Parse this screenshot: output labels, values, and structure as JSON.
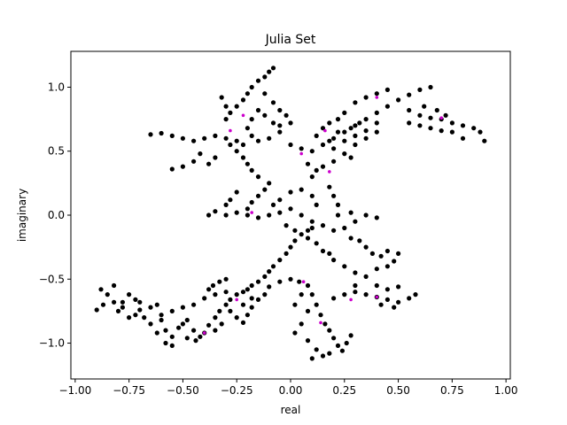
{
  "chart_data": {
    "type": "scatter",
    "title": "Julia Set",
    "xlabel": "real",
    "ylabel": "imaginary",
    "xlim": [
      -1.02,
      1.02
    ],
    "ylim": [
      -1.28,
      1.28
    ],
    "x_ticks": [
      -1.0,
      -0.75,
      -0.5,
      -0.25,
      0.0,
      0.25,
      0.5,
      0.75,
      1.0
    ],
    "x_tick_labels": [
      "−1.00",
      "−0.75",
      "−0.50",
      "−0.25",
      "0.00",
      "0.25",
      "0.50",
      "0.75",
      "1.00"
    ],
    "y_ticks": [
      -1.0,
      -0.5,
      0.0,
      0.5,
      1.0
    ],
    "y_tick_labels": [
      "−1.0",
      "−0.5",
      "0.0",
      "0.5",
      "1.0"
    ],
    "grid": false,
    "series": [
      {
        "marker_color": "#000000",
        "accent_color": "#cc00cc",
        "points": [
          [
            -0.87,
            -0.7
          ],
          [
            -0.85,
            -0.62
          ],
          [
            -0.82,
            -0.68
          ],
          [
            -0.9,
            -0.74
          ],
          [
            -0.78,
            -0.72
          ],
          [
            -0.75,
            -0.8
          ],
          [
            -0.72,
            -0.78
          ],
          [
            -0.7,
            -0.74
          ],
          [
            -0.68,
            -0.8
          ],
          [
            -0.65,
            -0.72
          ],
          [
            -0.62,
            -0.7
          ],
          [
            -0.6,
            -0.82
          ],
          [
            -0.58,
            -0.9
          ],
          [
            -0.55,
            -0.95
          ],
          [
            -0.52,
            -0.88
          ],
          [
            -0.5,
            -0.85
          ],
          [
            -0.48,
            -0.82
          ],
          [
            -0.45,
            -0.9
          ],
          [
            -0.42,
            -0.95
          ],
          [
            -0.4,
            -0.92
          ],
          [
            -0.38,
            -0.86
          ],
          [
            -0.35,
            -0.8
          ],
          [
            -0.33,
            -0.75
          ],
          [
            -0.3,
            -0.7
          ],
          [
            -0.28,
            -0.66
          ],
          [
            -0.25,
            -0.62
          ],
          [
            -0.22,
            -0.6
          ],
          [
            -0.2,
            -0.58
          ],
          [
            -0.18,
            -0.55
          ],
          [
            -0.15,
            -0.52
          ],
          [
            -0.12,
            -0.48
          ],
          [
            -0.1,
            -0.44
          ],
          [
            -0.08,
            -0.4
          ],
          [
            -0.05,
            -0.35
          ],
          [
            -0.02,
            -0.3
          ],
          [
            0.0,
            -0.25
          ],
          [
            0.02,
            -0.2
          ],
          [
            0.05,
            -0.15
          ],
          [
            0.08,
            -0.12
          ],
          [
            0.1,
            -0.1
          ],
          [
            -0.3,
            -0.5
          ],
          [
            -0.33,
            -0.52
          ],
          [
            -0.36,
            -0.55
          ],
          [
            -0.38,
            -0.58
          ],
          [
            -0.25,
            -0.8
          ],
          [
            -0.22,
            -0.84
          ],
          [
            -0.2,
            -0.78
          ],
          [
            -0.18,
            -0.72
          ],
          [
            -0.15,
            -0.66
          ],
          [
            -0.12,
            -0.62
          ],
          [
            -0.1,
            -0.56
          ],
          [
            -0.05,
            -0.52
          ],
          [
            0.0,
            -0.5
          ],
          [
            0.04,
            -0.52
          ],
          [
            0.08,
            -0.55
          ],
          [
            0.1,
            -0.62
          ],
          [
            0.12,
            -0.7
          ],
          [
            0.14,
            -0.78
          ],
          [
            0.16,
            -0.85
          ],
          [
            0.18,
            -0.9
          ],
          [
            0.2,
            -0.96
          ],
          [
            0.22,
            -1.02
          ],
          [
            0.24,
            -1.06
          ],
          [
            0.26,
            -1.0
          ],
          [
            0.28,
            -0.94
          ],
          [
            0.15,
            -1.1
          ],
          [
            0.1,
            -1.12
          ],
          [
            0.12,
            -1.05
          ],
          [
            0.18,
            -1.08
          ],
          [
            0.08,
            -0.98
          ],
          [
            0.2,
            -0.65
          ],
          [
            0.25,
            -0.62
          ],
          [
            0.3,
            -0.6
          ],
          [
            0.35,
            -0.62
          ],
          [
            0.4,
            -0.64
          ],
          [
            0.45,
            -0.66
          ],
          [
            0.5,
            -0.68
          ],
          [
            0.55,
            -0.65
          ],
          [
            0.58,
            -0.62
          ],
          [
            0.48,
            -0.72
          ],
          [
            0.42,
            -0.7
          ],
          [
            0.3,
            -0.55
          ],
          [
            0.35,
            -0.48
          ],
          [
            0.4,
            -0.42
          ],
          [
            0.45,
            -0.4
          ],
          [
            0.48,
            -0.36
          ],
          [
            0.3,
            -0.45
          ],
          [
            0.25,
            -0.4
          ],
          [
            0.2,
            -0.35
          ],
          [
            0.18,
            -0.3
          ],
          [
            -0.2,
            0.05
          ],
          [
            -0.18,
            0.1
          ],
          [
            -0.15,
            0.15
          ],
          [
            -0.12,
            0.2
          ],
          [
            -0.1,
            0.25
          ],
          [
            -0.15,
            0.3
          ],
          [
            -0.18,
            0.35
          ],
          [
            -0.2,
            0.4
          ],
          [
            -0.22,
            0.45
          ],
          [
            -0.25,
            0.5
          ],
          [
            -0.28,
            0.55
          ],
          [
            -0.3,
            0.6
          ],
          [
            -0.35,
            0.62
          ],
          [
            -0.4,
            0.6
          ],
          [
            -0.45,
            0.58
          ],
          [
            -0.5,
            0.6
          ],
          [
            -0.55,
            0.62
          ],
          [
            -0.6,
            0.64
          ],
          [
            -0.65,
            0.63
          ],
          [
            -0.42,
            0.48
          ],
          [
            -0.45,
            0.42
          ],
          [
            -0.5,
            0.38
          ],
          [
            -0.55,
            0.36
          ],
          [
            -0.35,
            0.45
          ],
          [
            -0.38,
            0.4
          ],
          [
            -0.3,
            0.75
          ],
          [
            -0.28,
            0.8
          ],
          [
            -0.25,
            0.85
          ],
          [
            -0.22,
            0.9
          ],
          [
            -0.2,
            0.95
          ],
          [
            -0.18,
            1.0
          ],
          [
            -0.15,
            1.05
          ],
          [
            -0.12,
            1.08
          ],
          [
            -0.1,
            1.12
          ],
          [
            -0.08,
            1.15
          ],
          [
            -0.12,
            0.95
          ],
          [
            -0.08,
            0.88
          ],
          [
            -0.05,
            0.82
          ],
          [
            -0.02,
            0.78
          ],
          [
            0.0,
            0.72
          ],
          [
            -0.05,
            0.65
          ],
          [
            0.0,
            0.55
          ],
          [
            0.05,
            0.52
          ],
          [
            0.1,
            0.5
          ],
          [
            0.15,
            0.55
          ],
          [
            0.2,
            0.6
          ],
          [
            0.25,
            0.65
          ],
          [
            0.3,
            0.7
          ],
          [
            0.35,
            0.75
          ],
          [
            0.4,
            0.8
          ],
          [
            0.45,
            0.85
          ],
          [
            0.5,
            0.9
          ],
          [
            0.55,
            0.94
          ],
          [
            0.6,
            0.98
          ],
          [
            0.65,
            1.0
          ],
          [
            0.55,
            0.82
          ],
          [
            0.6,
            0.78
          ],
          [
            0.65,
            0.76
          ],
          [
            0.7,
            0.75
          ],
          [
            0.75,
            0.72
          ],
          [
            0.8,
            0.7
          ],
          [
            0.85,
            0.68
          ],
          [
            0.88,
            0.65
          ],
          [
            0.9,
            0.58
          ],
          [
            0.75,
            0.65
          ],
          [
            0.8,
            0.6
          ],
          [
            0.4,
            0.65
          ],
          [
            0.35,
            0.6
          ],
          [
            0.3,
            0.55
          ],
          [
            0.25,
            0.48
          ],
          [
            0.2,
            0.42
          ],
          [
            0.28,
            0.45
          ],
          [
            0.15,
            0.68
          ],
          [
            0.18,
            0.72
          ],
          [
            0.22,
            0.75
          ],
          [
            0.25,
            0.8
          ],
          [
            0.3,
            0.88
          ],
          [
            0.35,
            0.92
          ],
          [
            0.4,
            0.95
          ],
          [
            0.45,
            0.98
          ],
          [
            -0.2,
            0.0
          ],
          [
            -0.15,
            -0.02
          ],
          [
            -0.1,
            0.0
          ],
          [
            -0.05,
            0.02
          ],
          [
            0.0,
            0.05
          ],
          [
            0.05,
            0.0
          ],
          [
            0.1,
            -0.05
          ],
          [
            0.15,
            -0.08
          ],
          [
            0.2,
            -0.12
          ],
          [
            0.25,
            -0.1
          ],
          [
            0.3,
            -0.05
          ],
          [
            0.35,
            0.0
          ],
          [
            0.4,
            -0.02
          ],
          [
            0.28,
            0.02
          ],
          [
            0.22,
            0.0
          ],
          [
            -0.25,
            0.02
          ],
          [
            -0.3,
            0.0
          ],
          [
            -0.35,
            0.03
          ],
          [
            -0.38,
            0.0
          ],
          [
            -0.05,
            0.12
          ],
          [
            0.0,
            0.18
          ],
          [
            0.05,
            0.2
          ],
          [
            0.1,
            0.15
          ],
          [
            0.12,
            0.08
          ],
          [
            -0.08,
            0.08
          ],
          [
            -0.02,
            -0.08
          ],
          [
            0.02,
            -0.12
          ],
          [
            0.08,
            -0.18
          ],
          [
            0.12,
            -0.22
          ],
          [
            0.15,
            -0.28
          ],
          [
            -0.65,
            -0.85
          ],
          [
            -0.6,
            -0.78
          ],
          [
            -0.55,
            -0.75
          ],
          [
            -0.5,
            -0.72
          ],
          [
            -0.45,
            -0.7
          ],
          [
            -0.4,
            -0.65
          ],
          [
            -0.35,
            -0.62
          ],
          [
            -0.3,
            -0.6
          ],
          [
            -0.7,
            -0.68
          ],
          [
            -0.75,
            -0.62
          ],
          [
            -0.22,
            -0.7
          ],
          [
            -0.18,
            -0.65
          ],
          [
            -0.28,
            -0.75
          ],
          [
            -0.32,
            -0.85
          ],
          [
            -0.35,
            -0.9
          ],
          [
            0.05,
            -0.62
          ],
          [
            0.02,
            -0.7
          ],
          [
            0.08,
            -0.75
          ],
          [
            0.05,
            -0.85
          ],
          [
            0.02,
            -0.92
          ],
          [
            0.25,
            0.58
          ],
          [
            0.3,
            0.62
          ],
          [
            0.35,
            0.66
          ],
          [
            0.4,
            0.72
          ],
          [
            0.2,
            0.52
          ],
          [
            0.18,
            0.58
          ],
          [
            0.22,
            0.65
          ],
          [
            0.28,
            0.68
          ],
          [
            0.32,
            0.72
          ],
          [
            0.12,
            0.62
          ],
          [
            0.55,
            0.72
          ],
          [
            0.6,
            0.7
          ],
          [
            0.65,
            0.68
          ],
          [
            0.7,
            0.66
          ],
          [
            0.72,
            0.78
          ],
          [
            0.68,
            0.82
          ],
          [
            0.62,
            0.85
          ],
          [
            -0.1,
            0.6
          ],
          [
            -0.15,
            0.58
          ],
          [
            -0.18,
            0.62
          ],
          [
            -0.22,
            0.55
          ],
          [
            -0.25,
            0.58
          ],
          [
            -0.2,
            0.68
          ],
          [
            -0.18,
            0.75
          ],
          [
            -0.15,
            0.82
          ],
          [
            -0.12,
            0.78
          ],
          [
            -0.08,
            0.72
          ],
          [
            -0.05,
            0.7
          ],
          [
            -0.3,
            0.85
          ],
          [
            -0.32,
            0.92
          ],
          [
            0.1,
            0.3
          ],
          [
            0.12,
            0.35
          ],
          [
            0.08,
            0.4
          ],
          [
            0.15,
            0.38
          ],
          [
            0.18,
            0.22
          ],
          [
            0.2,
            0.15
          ],
          [
            0.22,
            0.08
          ],
          [
            -0.25,
            0.18
          ],
          [
            -0.28,
            0.12
          ],
          [
            -0.3,
            0.08
          ],
          [
            0.35,
            -0.25
          ],
          [
            0.38,
            -0.3
          ],
          [
            0.42,
            -0.32
          ],
          [
            0.45,
            -0.28
          ],
          [
            0.5,
            -0.3
          ],
          [
            0.32,
            -0.2
          ],
          [
            0.28,
            -0.18
          ],
          [
            0.4,
            -0.55
          ],
          [
            0.45,
            -0.58
          ],
          [
            0.5,
            -0.56
          ],
          [
            -0.8,
            -0.75
          ],
          [
            -0.78,
            -0.68
          ],
          [
            -0.72,
            -0.66
          ],
          [
            -0.88,
            -0.58
          ],
          [
            -0.82,
            -0.55
          ],
          [
            -0.62,
            -0.92
          ],
          [
            -0.58,
            -1.0
          ],
          [
            -0.55,
            -1.02
          ],
          [
            -0.48,
            -0.96
          ],
          [
            -0.44,
            -0.98
          ]
        ],
        "accent_points": [
          [
            -0.28,
            0.66
          ],
          [
            -0.18,
            0.02
          ],
          [
            0.16,
            0.66
          ],
          [
            0.4,
            0.92
          ],
          [
            0.7,
            0.76
          ],
          [
            0.18,
            0.34
          ],
          [
            0.28,
            -0.66
          ],
          [
            0.06,
            -0.52
          ],
          [
            -0.4,
            -0.92
          ],
          [
            -0.25,
            -0.66
          ],
          [
            0.14,
            -0.84
          ],
          [
            0.4,
            -0.64
          ],
          [
            -0.22,
            0.78
          ],
          [
            0.05,
            0.48
          ]
        ]
      }
    ]
  }
}
